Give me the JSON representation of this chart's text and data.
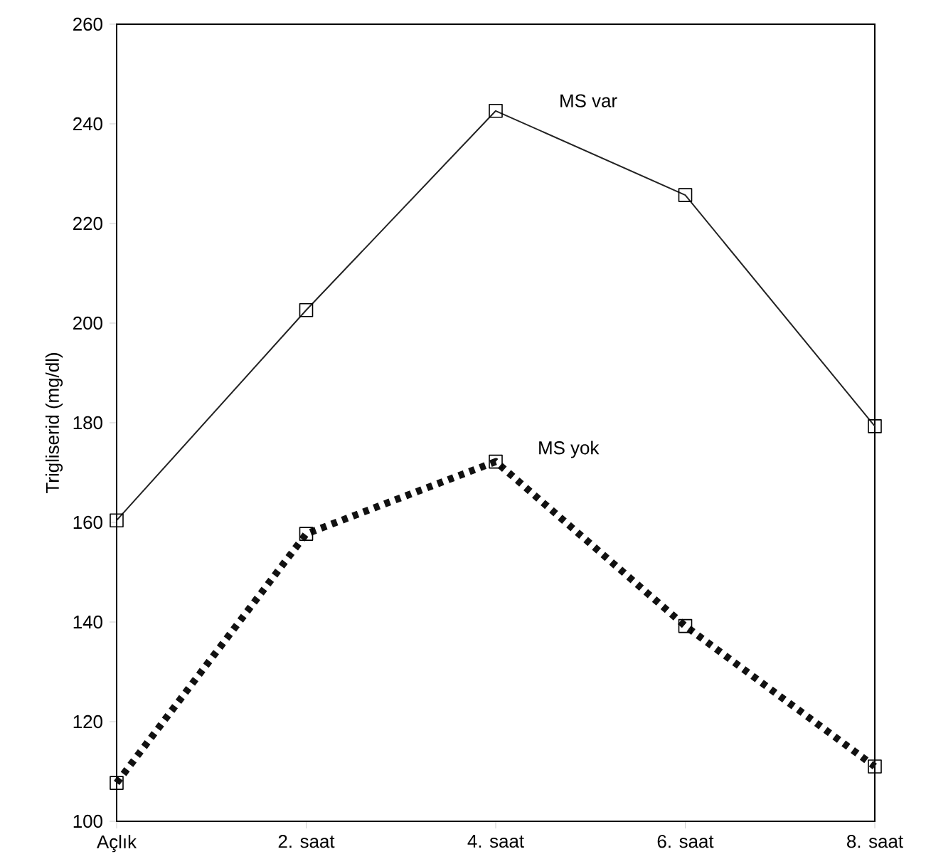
{
  "chart_data": {
    "type": "line",
    "ylabel": "Trigliserid (mg/dl)",
    "categories": [
      "Açlık",
      "2. saat",
      "4. saat",
      "6. saat",
      "8. saat"
    ],
    "series": [
      {
        "name": "MS var",
        "color": "#222222",
        "line_style": "solid",
        "values": [
          160.4,
          202.6,
          242.6,
          225.7,
          179.3
        ]
      },
      {
        "name": "MS yok",
        "color": "#111111",
        "line_style": "dashed",
        "values": [
          107.7,
          157.7,
          172.2,
          139.2,
          111
        ]
      }
    ],
    "ylim": [
      100,
      260
    ],
    "yticks": [
      100,
      120,
      140,
      160,
      180,
      200,
      220,
      240,
      260
    ],
    "marker": "square",
    "grid": false,
    "legend": false
  }
}
